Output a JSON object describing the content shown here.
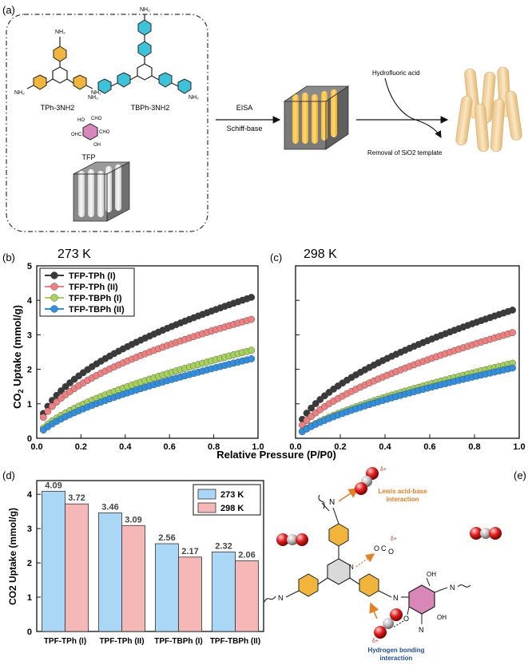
{
  "panels": {
    "a": "(a)",
    "b": "(b)",
    "c": "(c)",
    "d": "(d)",
    "e": "(e)"
  },
  "scheme": {
    "mol1_label": "TPh-3NH2",
    "mol2_label": "TBPh-3NH2",
    "mol3_label": "TFP",
    "nh2": "NH₂",
    "cho": "CHO",
    "oh": "OH",
    "ohc": "OHC",
    "ho": "HO",
    "step1_top": "EISA",
    "step1_bottom": "Schiff-base",
    "step2_top": "Hydrofluoric acid",
    "step2_bottom": "Removal of SiO2 template"
  },
  "colors": {
    "series": [
      "#3a3a3a",
      "#f08080",
      "#a6d25a",
      "#2f8fe0"
    ],
    "bar_273": "#a9d7f5",
    "bar_298": "#f6b7b7",
    "triazine_yellow": "#f2b53b",
    "cyan": "#3cc3d9",
    "pink_ring": "#d987b8"
  },
  "chart_data": [
    {
      "type": "scatter",
      "panel": "b",
      "title": "273 K",
      "xlabel": "Relative Pressure (P/P0)",
      "ylabel": "CO2 Uptake (mmol/g)",
      "xlim": [
        0,
        1.0
      ],
      "ylim": [
        0,
        5
      ],
      "xticks": [
        "0.0",
        "0.2",
        "0.4",
        "0.6",
        "0.8",
        "1.0"
      ],
      "yticks": [
        "0",
        "1",
        "2",
        "3",
        "4",
        "5"
      ],
      "legend_position": "top-left",
      "series": [
        {
          "name": "TFP-TPh (I)",
          "a": 4.15,
          "p": 0.5
        },
        {
          "name": "TFP-TPh (II)",
          "a": 3.5,
          "p": 0.5
        },
        {
          "name": "TFP-TBPh (I)",
          "a": 2.6,
          "p": 0.62
        },
        {
          "name": "TFP-TBPh (II)",
          "a": 2.35,
          "p": 0.65
        }
      ],
      "x_start": 0.03,
      "x_end": 0.97,
      "n_points": 48
    },
    {
      "type": "scatter",
      "panel": "c",
      "title": "298 K",
      "xlabel": "Relative Pressure (P/P0)",
      "ylabel": "",
      "xlim": [
        0,
        1.0
      ],
      "ylim": [
        0,
        5
      ],
      "xticks": [
        "0.0",
        "0.2",
        "0.4",
        "0.6",
        "0.8",
        "1.0"
      ],
      "yticks": [],
      "series": [
        {
          "name": "TFP-TPh (I)",
          "a": 3.78,
          "p": 0.55
        },
        {
          "name": "TFP-TPh (II)",
          "a": 3.12,
          "p": 0.6
        },
        {
          "name": "TFP-TBPh (I)",
          "a": 2.22,
          "p": 0.68
        },
        {
          "name": "TFP-TBPh (II)",
          "a": 2.08,
          "p": 0.68
        }
      ],
      "x_start": 0.03,
      "x_end": 0.97,
      "n_points": 48
    },
    {
      "type": "bar",
      "panel": "d",
      "title": "",
      "xlabel": "",
      "ylabel": "CO2 Uptake (mmol/g)",
      "ylim": [
        0,
        4.4
      ],
      "yticks": [
        "0",
        "1",
        "2",
        "3",
        "4"
      ],
      "categories": [
        "TPF-TPh (I)",
        "TPF-TPh (II)",
        "TPF-TBPh (I)",
        "TPF-TBPh (II)"
      ],
      "series": [
        {
          "name": "273 K",
          "values": [
            4.09,
            3.46,
            2.56,
            2.32
          ],
          "labels": [
            "4.09",
            "3.46",
            "2.56",
            "2.32"
          ]
        },
        {
          "name": "298 K",
          "values": [
            3.72,
            3.09,
            2.17,
            2.06
          ],
          "labels": [
            "3.72",
            "3.09",
            "2.17",
            "2.06"
          ]
        }
      ],
      "legend_position": "top-right"
    }
  ],
  "mechanism": {
    "lewis_line1": "Lewis acid-base",
    "lewis_line2": "interaction",
    "hbond_line1": "Hydrogen bonding",
    "hbond_line2": "interaction",
    "delta_plus": "δ+",
    "delta_minus": "δ-",
    "n_label": "N",
    "o_label": "O",
    "c_label": "C",
    "oh_label": "OH"
  }
}
